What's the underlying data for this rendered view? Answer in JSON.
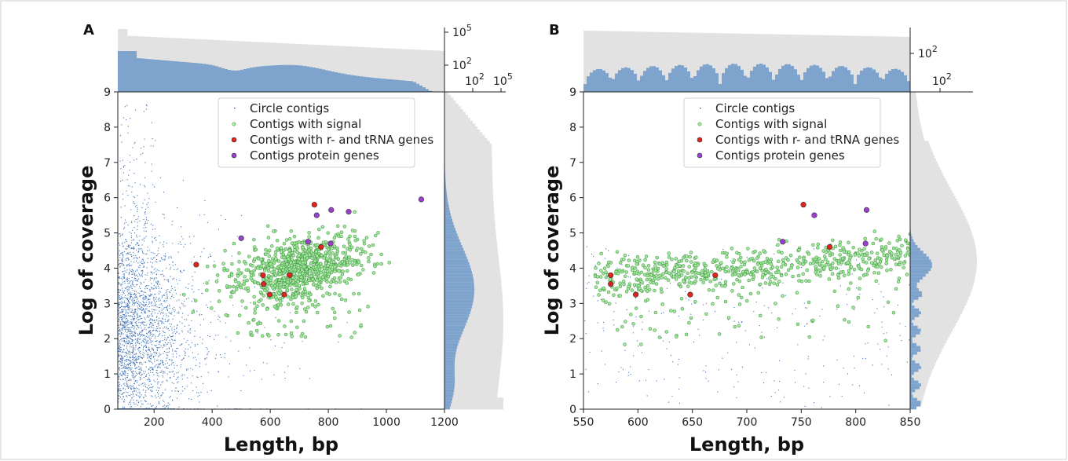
{
  "chart_data": [
    {
      "panel": "A",
      "type": "scatter",
      "xlabel": "Length, bp",
      "ylabel": "Log of coverage",
      "xlim": [
        75,
        1200
      ],
      "ylim": [
        0,
        9
      ],
      "xticks": [
        "200",
        "400",
        "600",
        "800",
        "1000",
        "1200"
      ],
      "yticks": [
        "0",
        "1",
        "2",
        "3",
        "4",
        "5",
        "6",
        "7",
        "8",
        "9"
      ],
      "top_hist_scale_labels": [
        "10^5",
        "10^2"
      ],
      "right_hist_scale_labels": [
        "10^2",
        "10^5"
      ],
      "legend": {
        "placement": "top-center",
        "entries": [
          "Circle contigs",
          "Contigs with signal",
          "Contigs with r- and tRNA genes",
          "Contigs protein genes"
        ]
      },
      "series": [
        {
          "name": "Contigs with r- and tRNA genes",
          "x": [
            345,
            575,
            577,
            598,
            648,
            667,
            752,
            775
          ],
          "y": [
            4.1,
            3.8,
            3.55,
            3.25,
            3.25,
            3.8,
            5.8,
            4.6
          ]
        },
        {
          "name": "Contigs protein genes",
          "x": [
            500,
            760,
            810,
            870,
            730,
            808,
            1120
          ],
          "y": [
            4.85,
            5.5,
            5.65,
            5.6,
            4.75,
            4.7,
            5.95
          ]
        }
      ],
      "colors": {
        "circle": "#3b6fb6",
        "signal_fill": "#9ee89a",
        "signal_edge": "#3d8a3d",
        "rtrna": "#e0241c",
        "protein": "#9b3fd1",
        "hist_main": "#7ea3cc",
        "hist_bg": "#e2e2e2"
      }
    },
    {
      "panel": "B",
      "type": "scatter",
      "xlabel": "Length, bp",
      "ylabel": "Log of coverage",
      "xlim": [
        550,
        850
      ],
      "ylim": [
        0,
        9
      ],
      "xticks": [
        "550",
        "600",
        "650",
        "700",
        "750",
        "800",
        "850"
      ],
      "yticks": [
        "0",
        "1",
        "2",
        "3",
        "4",
        "5",
        "6",
        "7",
        "8",
        "9"
      ],
      "top_hist_scale_labels": [
        "10^2"
      ],
      "right_hist_scale_labels": [
        "10^2"
      ],
      "legend": {
        "placement": "top-center",
        "entries": [
          "Circle contigs",
          "Contigs with signal",
          "Contigs with r- and tRNA genes",
          "Contigs protein genes"
        ]
      },
      "series": [
        {
          "name": "Contigs with r- and tRNA genes",
          "x": [
            575,
            575,
            598,
            648,
            671,
            752,
            776
          ],
          "y": [
            3.8,
            3.55,
            3.25,
            3.25,
            3.8,
            5.8,
            4.6
          ]
        },
        {
          "name": "Contigs protein genes",
          "x": [
            762,
            810,
            733,
            809
          ],
          "y": [
            5.5,
            5.65,
            4.75,
            4.7
          ]
        }
      ],
      "colors": {
        "circle": "#3b6fb6",
        "signal_fill": "#9ee89a",
        "signal_edge": "#3d8a3d",
        "rtrna": "#e0241c",
        "protein": "#9b3fd1",
        "hist_main": "#7ea3cc",
        "hist_bg": "#e2e2e2"
      }
    }
  ]
}
